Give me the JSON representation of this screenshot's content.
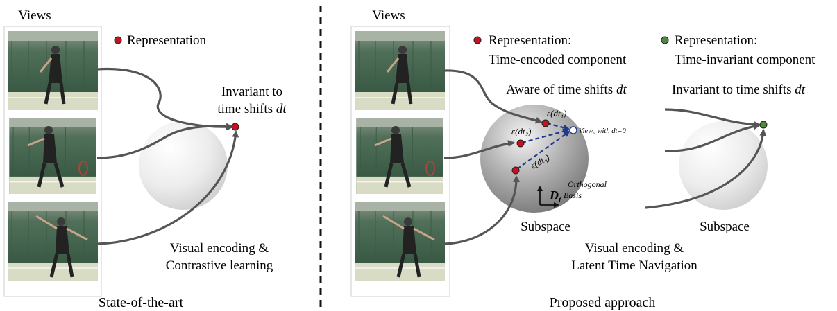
{
  "left": {
    "views_label": "Views",
    "legend_label": "Representation",
    "invariant_line1": "Invariant to",
    "invariant_line2": "time shifts ",
    "invariant_var": "dt",
    "encoding_line1": "Visual encoding &",
    "encoding_line2": "Contrastive learning",
    "caption": "State-of-the-art"
  },
  "right": {
    "views_label": "Views",
    "legend_red_line1": "Representation:",
    "legend_red_line2": "Time-encoded component",
    "legend_green_line1": "Representation:",
    "legend_green_line2": "Time-invariant component",
    "aware_text": "Aware of time shifts ",
    "aware_var": "dt",
    "invariant_text": "Invariant to time shifts ",
    "invariant_var": "dt",
    "eps_dt1": "ε(dt₁)",
    "eps_dt2": "ε(dt₂)",
    "eps_dt3": "ε(dt₃)",
    "view0": "View₀ with dt=0",
    "basis_symbol": "D",
    "basis_sub": "t",
    "orthogonal_line1": "Orthogonal",
    "orthogonal_line2": "Basis",
    "subspace_left": "Subspace",
    "subspace_right": "Subspace",
    "encoding_line1": "Visual encoding &",
    "encoding_line2": "Latent Time Navigation",
    "caption": "Proposed approach"
  },
  "colors": {
    "red_dot": "#c8101e",
    "green_dot": "#4f8a3c",
    "dashed_line": "#1f3a8a",
    "arrow": "#555555"
  }
}
